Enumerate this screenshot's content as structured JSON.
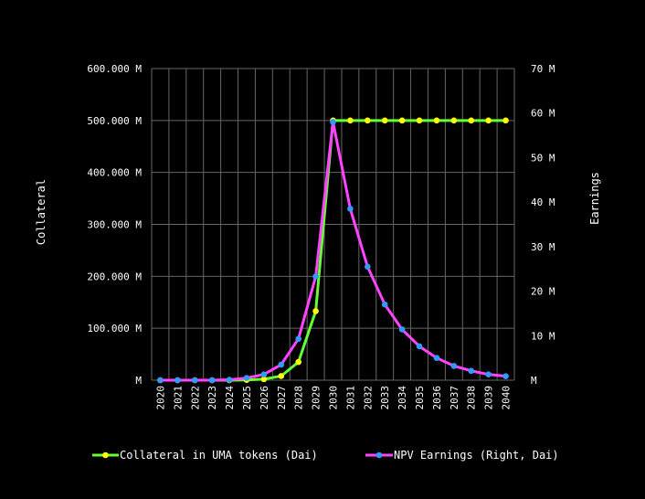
{
  "chart_data": {
    "type": "line",
    "background": "#000000",
    "grid": true,
    "legend_position": "bottom",
    "x": [
      "2020",
      "2021",
      "2022",
      "2023",
      "2024",
      "2025",
      "2026",
      "2027",
      "2028",
      "2029",
      "2030",
      "2031",
      "2032",
      "2033",
      "2034",
      "2035",
      "2036",
      "2037",
      "2038",
      "2039",
      "2040"
    ],
    "y_left": {
      "label": "Collateral",
      "lim": [
        0,
        600000000
      ],
      "ticks": [
        "M",
        "100.000 M",
        "200.000 M",
        "300.000 M",
        "400.000 M",
        "500.000 M",
        "600.000 M"
      ]
    },
    "y_right": {
      "label": "Earnings",
      "lim": [
        0,
        70000000
      ],
      "ticks": [
        "M",
        "10 M",
        "20 M",
        "30 M",
        "40 M",
        "50 M",
        "60 M",
        "70 M"
      ]
    },
    "series": [
      {
        "name": "Collateral in UMA tokens (Dai)",
        "axis": "left",
        "color": "#66ff33",
        "marker_color": "#ffff00",
        "values": [
          0,
          0,
          0,
          0,
          0,
          500000,
          2000000,
          8000000,
          35000000,
          133000000,
          500000000,
          500000000,
          500000000,
          500000000,
          500000000,
          500000000,
          500000000,
          500000000,
          500000000,
          500000000,
          500000000
        ]
      },
      {
        "name": "NPV Earnings (Right, Dai)",
        "axis": "right",
        "color": "#ff44ff",
        "marker_color": "#3399ff",
        "values": [
          0,
          0,
          0,
          0,
          100000,
          500000,
          1300000,
          3500000,
          9300000,
          23300000,
          58000000,
          38500000,
          25500000,
          17000000,
          11400000,
          7600000,
          5000000,
          3200000,
          2100000,
          1300000,
          900000
        ]
      }
    ]
  }
}
